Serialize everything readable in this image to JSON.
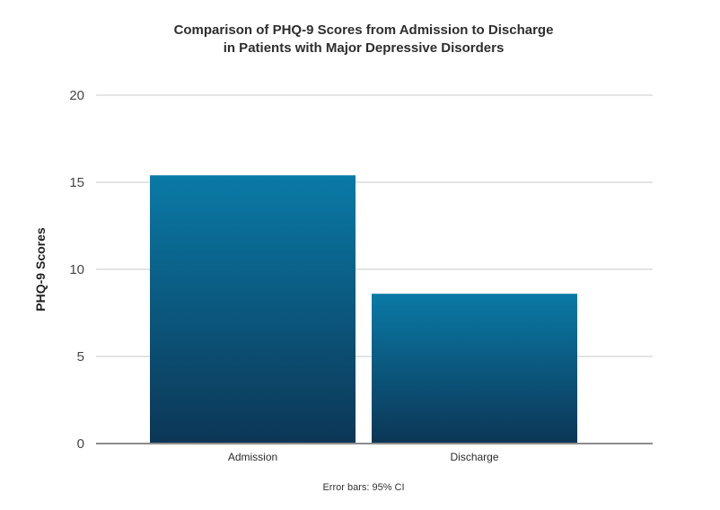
{
  "chart_data": {
    "type": "bar",
    "title_lines": [
      "Comparison of PHQ-9 Scores from Admission to Discharge",
      "in Patients with Major Depressive Disorders"
    ],
    "categories": [
      "Admission",
      "Discharge"
    ],
    "values": [
      15.4,
      8.6
    ],
    "xlabel": "",
    "ylabel": "PHQ-9 Scores",
    "ylim": [
      0,
      20
    ],
    "yticks": [
      "0",
      "5",
      "10",
      "15",
      "20"
    ],
    "grid": true,
    "footnote": "Error bars: 95% CI",
    "colors": {
      "bar_top": "#0a7aa6",
      "bar_bottom": "#0c3656",
      "grid": "#c8c8c8",
      "axis": "#8c8c8c"
    }
  }
}
